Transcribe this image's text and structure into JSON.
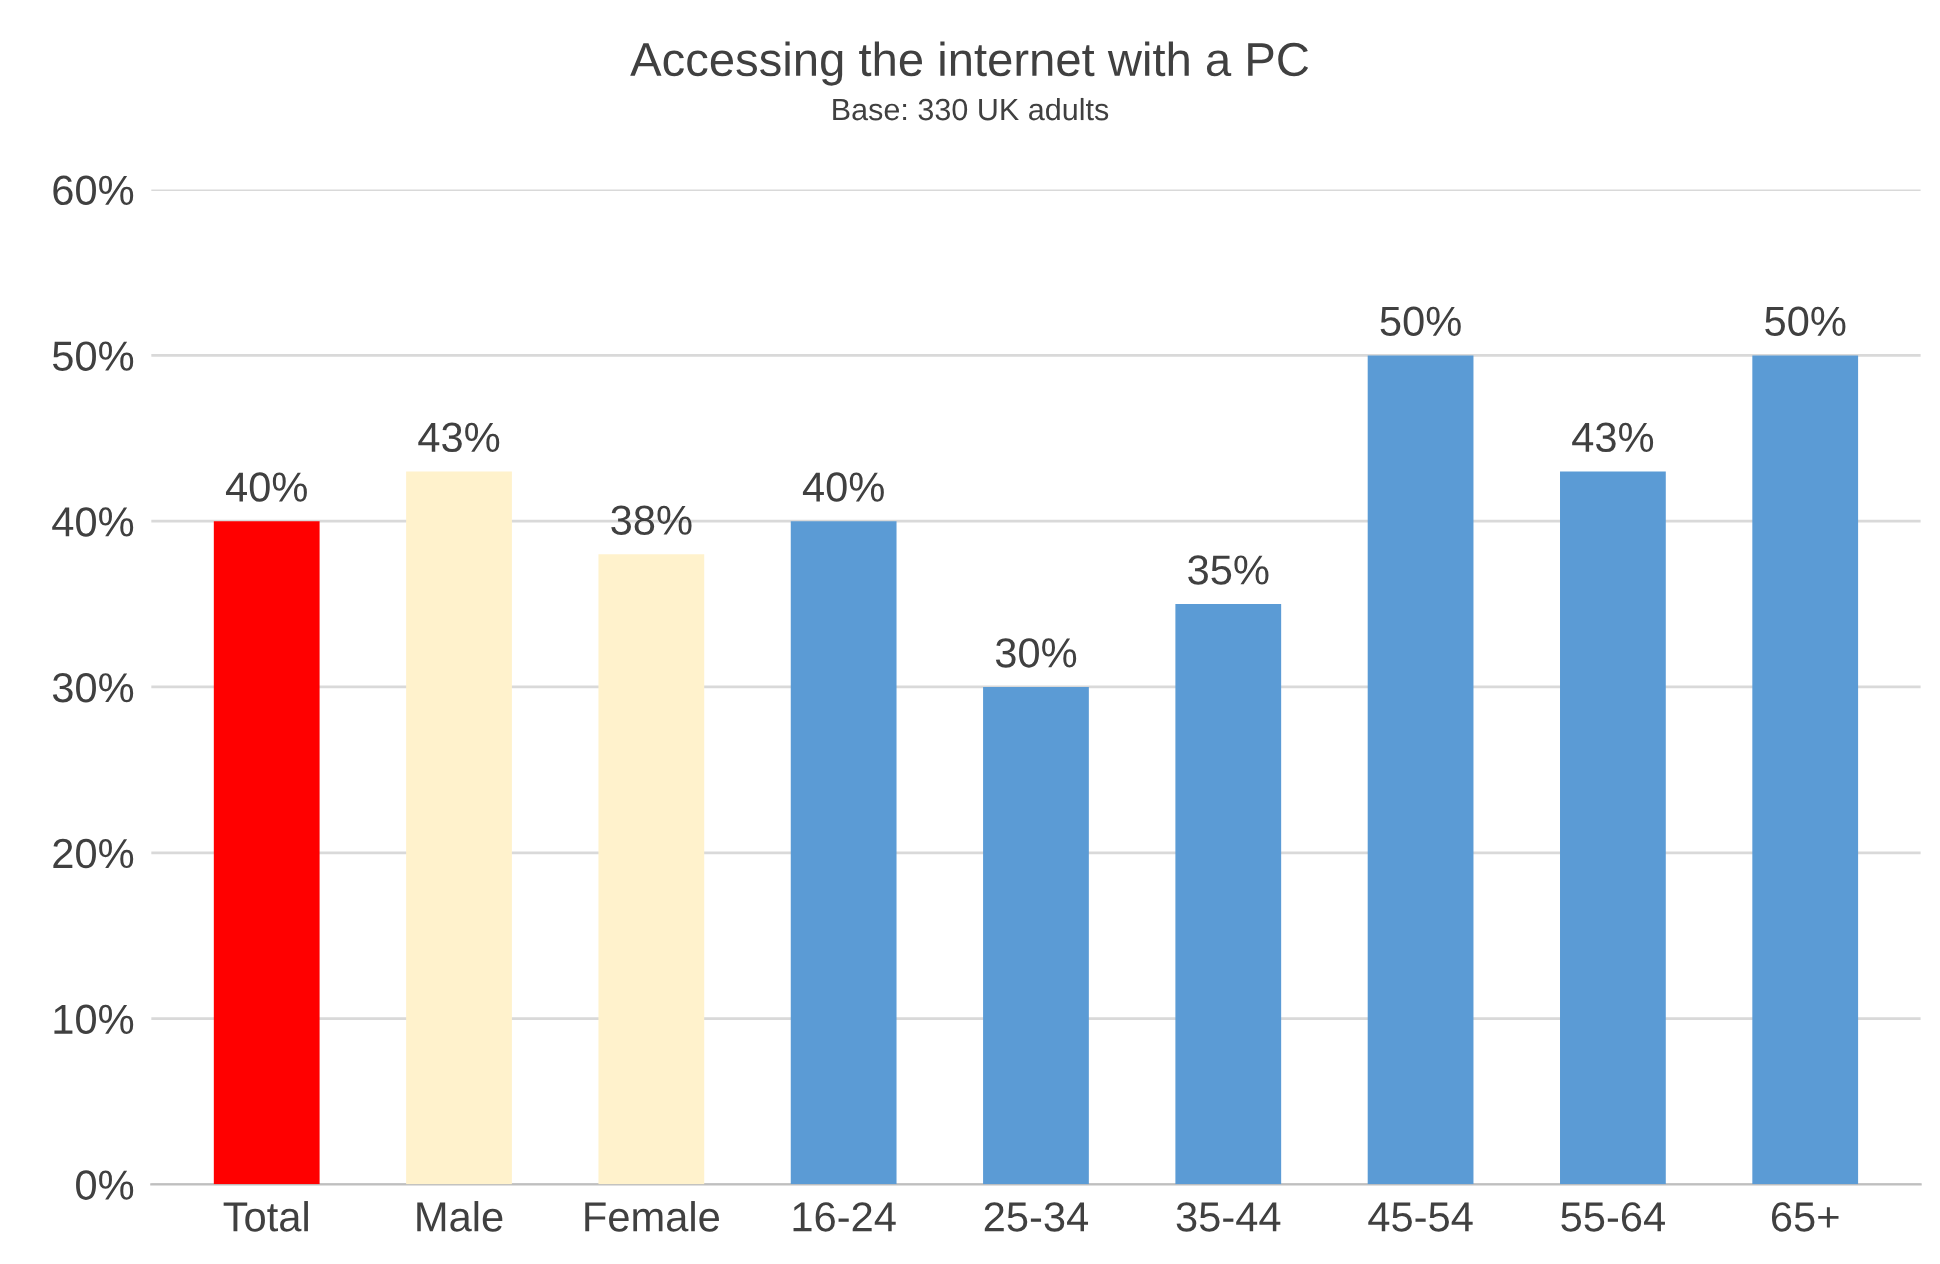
{
  "chart_data": {
    "type": "bar",
    "title": "Accessing the internet with a PC",
    "subtitle": "Base: 330 UK adults",
    "categories": [
      "Total",
      "Male",
      "Female",
      "16-24",
      "25-34",
      "35-44",
      "45-54",
      "55-64",
      "65+"
    ],
    "values": [
      40,
      43,
      38,
      40,
      30,
      35,
      50,
      43,
      50
    ],
    "value_labels": [
      "40%",
      "43%",
      "38%",
      "40%",
      "30%",
      "35%",
      "50%",
      "43%",
      "50%"
    ],
    "colors": [
      "#ff0000",
      "#fff2cc",
      "#fff2cc",
      "#5b9bd5",
      "#5b9bd5",
      "#5b9bd5",
      "#5b9bd5",
      "#5b9bd5",
      "#5b9bd5"
    ],
    "ylim": [
      0,
      60
    ],
    "yticks": [
      {
        "value": 0,
        "label": "0%"
      },
      {
        "value": 10,
        "label": "10%"
      },
      {
        "value": 20,
        "label": "20%"
      },
      {
        "value": 30,
        "label": "30%"
      },
      {
        "value": 40,
        "label": "40%"
      },
      {
        "value": 50,
        "label": "50%"
      },
      {
        "value": 60,
        "label": "60%"
      }
    ],
    "grid": "y",
    "legend": false
  }
}
